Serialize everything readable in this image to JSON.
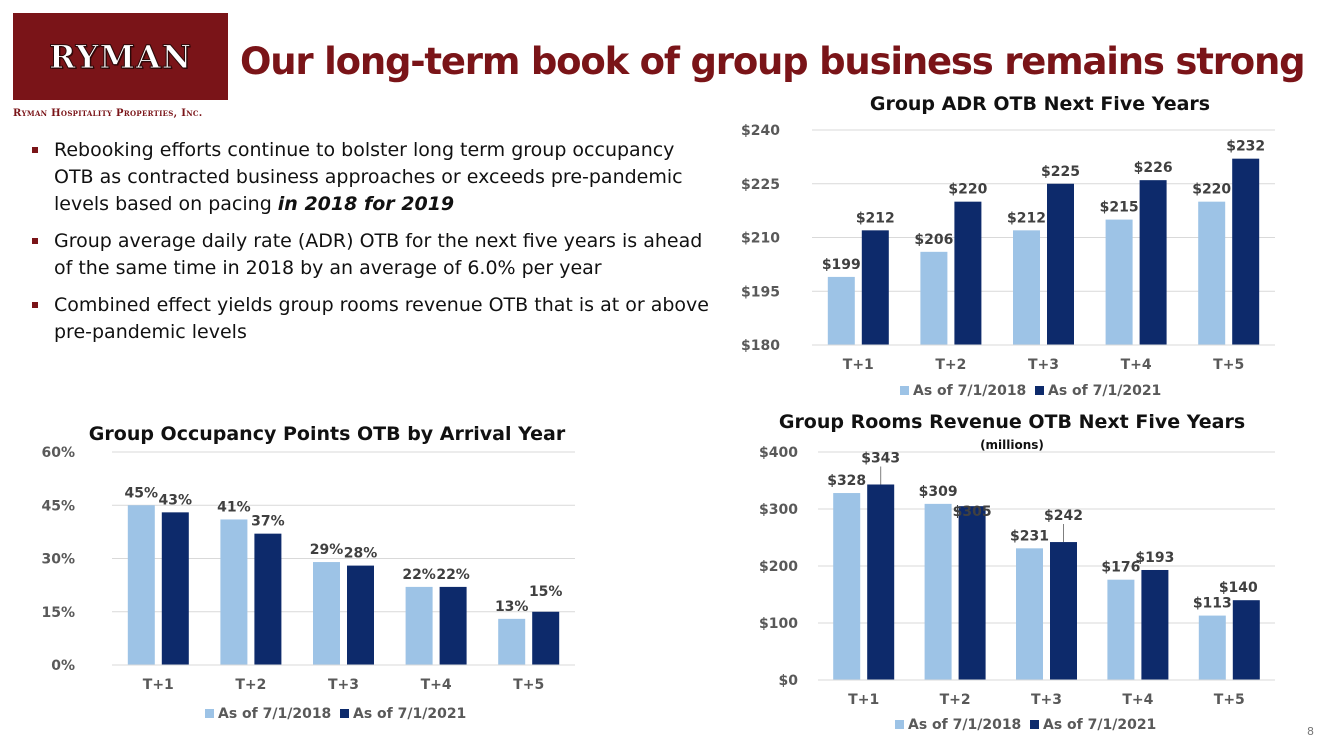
{
  "header": {
    "logo_text": "RYMAN",
    "logo_subtitle": "Ryman Hospitality Properties, Inc.",
    "title": "Our long-term book of group business remains strong"
  },
  "bullets": {
    "b1_text": "Rebooking efforts continue to bolster long term group occupancy OTB as contracted business approaches or exceeds pre-pandemic levels based on pacing ",
    "b1_emphasis": "in 2018 for 2019",
    "b2_text": "Group average daily rate (ADR) OTB for the next five years is ahead of the same time in 2018 by an average of 6.0% per year",
    "b3_text": "Combined effect yields group rooms revenue OTB that is at or above pre-pandemic levels"
  },
  "colors": {
    "brand": "#7a1418",
    "series_light": "#9dc3e6",
    "series_dark": "#0d2a6b"
  },
  "page_number": "8",
  "chart_data": [
    {
      "id": "adr",
      "type": "bar",
      "title": "Group ADR OTB Next Five Years",
      "subtitle": "",
      "categories": [
        "T+1",
        "T+2",
        "T+3",
        "T+4",
        "T+5"
      ],
      "series": [
        {
          "name": "As of 7/1/2018",
          "values": [
            199,
            206,
            212,
            215,
            220
          ],
          "labels": [
            "$199",
            "$206",
            "$212",
            "$215",
            "$220"
          ]
        },
        {
          "name": "As of 7/1/2021",
          "values": [
            212,
            220,
            225,
            226,
            232
          ],
          "labels": [
            "$212",
            "$220",
            "$225",
            "$226",
            "$232"
          ]
        }
      ],
      "ylim": [
        180,
        240
      ],
      "yticks": [
        180,
        195,
        210,
        225,
        240
      ],
      "ytick_labels": [
        "$180",
        "$195",
        "$210",
        "$225",
        "$240"
      ],
      "grid": true,
      "legend": "bottom"
    },
    {
      "id": "occ",
      "type": "bar",
      "title": "Group Occupancy Points OTB by Arrival Year",
      "subtitle": "",
      "categories": [
        "T+1",
        "T+2",
        "T+3",
        "T+4",
        "T+5"
      ],
      "series": [
        {
          "name": "As of 7/1/2018",
          "values": [
            45,
            41,
            29,
            22,
            13
          ],
          "labels": [
            "45%",
            "41%",
            "29%",
            "22%",
            "13%"
          ]
        },
        {
          "name": "As of 7/1/2021",
          "values": [
            43,
            37,
            28,
            22,
            15
          ],
          "labels": [
            "43%",
            "37%",
            "28%",
            "22%",
            "15%"
          ]
        }
      ],
      "ylim": [
        0,
        60
      ],
      "yticks": [
        0,
        15,
        30,
        45,
        60
      ],
      "ytick_labels": [
        "0%",
        "15%",
        "30%",
        "45%",
        "60%"
      ],
      "grid": true,
      "legend": "bottom"
    },
    {
      "id": "rev",
      "type": "bar",
      "title": "Group Rooms Revenue OTB Next Five Years",
      "subtitle": "(millions)",
      "categories": [
        "T+1",
        "T+2",
        "T+3",
        "T+4",
        "T+5"
      ],
      "series": [
        {
          "name": "As of 7/1/2018",
          "values": [
            328,
            309,
            231,
            176,
            113
          ],
          "labels": [
            "$328",
            "$309",
            "$231",
            "$176",
            "$113"
          ]
        },
        {
          "name": "As of 7/1/2021",
          "values": [
            343,
            305,
            242,
            193,
            140
          ],
          "labels": [
            "$343",
            "$305",
            "$242",
            "$193",
            "$140"
          ]
        }
      ],
      "ylim": [
        0,
        400
      ],
      "yticks": [
        0,
        100,
        200,
        300,
        400
      ],
      "ytick_labels": [
        "$0",
        "$100",
        "$200",
        "$300",
        "$400"
      ],
      "grid": true,
      "legend": "bottom"
    }
  ]
}
